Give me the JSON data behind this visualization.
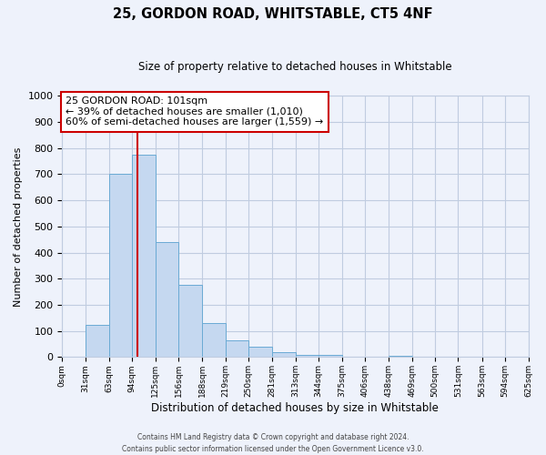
{
  "title": "25, GORDON ROAD, WHITSTABLE, CT5 4NF",
  "subtitle": "Size of property relative to detached houses in Whitstable",
  "xlabel": "Distribution of detached houses by size in Whitstable",
  "ylabel": "Number of detached properties",
  "bar_values": [
    0,
    125,
    700,
    775,
    440,
    275,
    130,
    65,
    40,
    20,
    10,
    10,
    0,
    0,
    5,
    0,
    0,
    0,
    0,
    0
  ],
  "bin_edges": [
    0,
    31,
    63,
    94,
    125,
    156,
    188,
    219,
    250,
    281,
    313,
    344,
    375,
    406,
    438,
    469,
    500,
    531,
    563,
    594,
    625
  ],
  "bin_labels": [
    "0sqm",
    "31sqm",
    "63sqm",
    "94sqm",
    "125sqm",
    "156sqm",
    "188sqm",
    "219sqm",
    "250sqm",
    "281sqm",
    "313sqm",
    "344sqm",
    "375sqm",
    "406sqm",
    "438sqm",
    "469sqm",
    "500sqm",
    "531sqm",
    "563sqm",
    "594sqm",
    "625sqm"
  ],
  "bar_color": "#c5d8f0",
  "bar_edge_color": "#6aaad4",
  "vline_x": 101,
  "vline_color": "#cc0000",
  "annotation_title": "25 GORDON ROAD: 101sqm",
  "annotation_line1": "← 39% of detached houses are smaller (1,010)",
  "annotation_line2": "60% of semi-detached houses are larger (1,559) →",
  "annotation_box_color": "white",
  "annotation_box_edge": "#cc0000",
  "ylim": [
    0,
    1000
  ],
  "yticks": [
    0,
    100,
    200,
    300,
    400,
    500,
    600,
    700,
    800,
    900,
    1000
  ],
  "footer1": "Contains HM Land Registry data © Crown copyright and database right 2024.",
  "footer2": "Contains public sector information licensed under the Open Government Licence v3.0.",
  "background_color": "#eef2fb",
  "grid_color": "#c0cce0"
}
